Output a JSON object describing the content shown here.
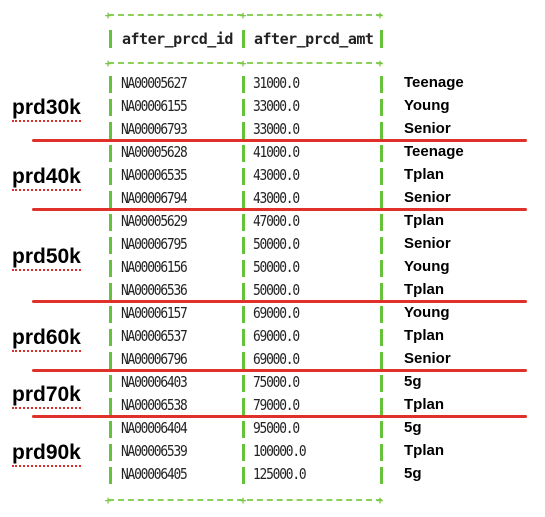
{
  "columns": [
    "after_prcd_id",
    "after_prcd_amt"
  ],
  "rows": [
    {
      "id": "NA00005627",
      "amt": "31000.0",
      "tag": "Teenage"
    },
    {
      "id": "NA00006155",
      "amt": "33000.0",
      "tag": "Young"
    },
    {
      "id": "NA00006793",
      "amt": "33000.0",
      "tag": "Senior"
    },
    {
      "id": "NA00005628",
      "amt": "41000.0",
      "tag": "Teenage"
    },
    {
      "id": "NA00006535",
      "amt": "43000.0",
      "tag": "Tplan"
    },
    {
      "id": "NA00006794",
      "amt": "43000.0",
      "tag": "Senior"
    },
    {
      "id": "NA00005629",
      "amt": "47000.0",
      "tag": "Tplan"
    },
    {
      "id": "NA00006795",
      "amt": "50000.0",
      "tag": "Senior"
    },
    {
      "id": "NA00006156",
      "amt": "50000.0",
      "tag": "Young"
    },
    {
      "id": "NA00006536",
      "amt": "50000.0",
      "tag": "Tplan"
    },
    {
      "id": "NA00006157",
      "amt": "69000.0",
      "tag": "Young"
    },
    {
      "id": "NA00006537",
      "amt": "69000.0",
      "tag": "Tplan"
    },
    {
      "id": "NA00006796",
      "amt": "69000.0",
      "tag": "Senior"
    },
    {
      "id": "NA00006403",
      "amt": "75000.0",
      "tag": "5g"
    },
    {
      "id": "NA00006538",
      "amt": "79000.0",
      "tag": "Tplan"
    },
    {
      "id": "NA00006404",
      "amt": "95000.0",
      "tag": "5g"
    },
    {
      "id": "NA00006539",
      "amt": "100000.0",
      "tag": "Tplan"
    },
    {
      "id": "NA00006405",
      "amt": "125000.0",
      "tag": "5g"
    }
  ],
  "groups": [
    {
      "label": "prd30k",
      "rows": 3
    },
    {
      "label": "prd40k",
      "rows": 3
    },
    {
      "label": "prd50k",
      "rows": 4
    },
    {
      "label": "prd60k",
      "rows": 3
    },
    {
      "label": "prd70k",
      "rows": 2
    },
    {
      "label": "prd90k",
      "rows": 3
    }
  ],
  "colors": {
    "border": "#66c23a",
    "separator": "#e0302a",
    "underline": "#d9302a"
  }
}
